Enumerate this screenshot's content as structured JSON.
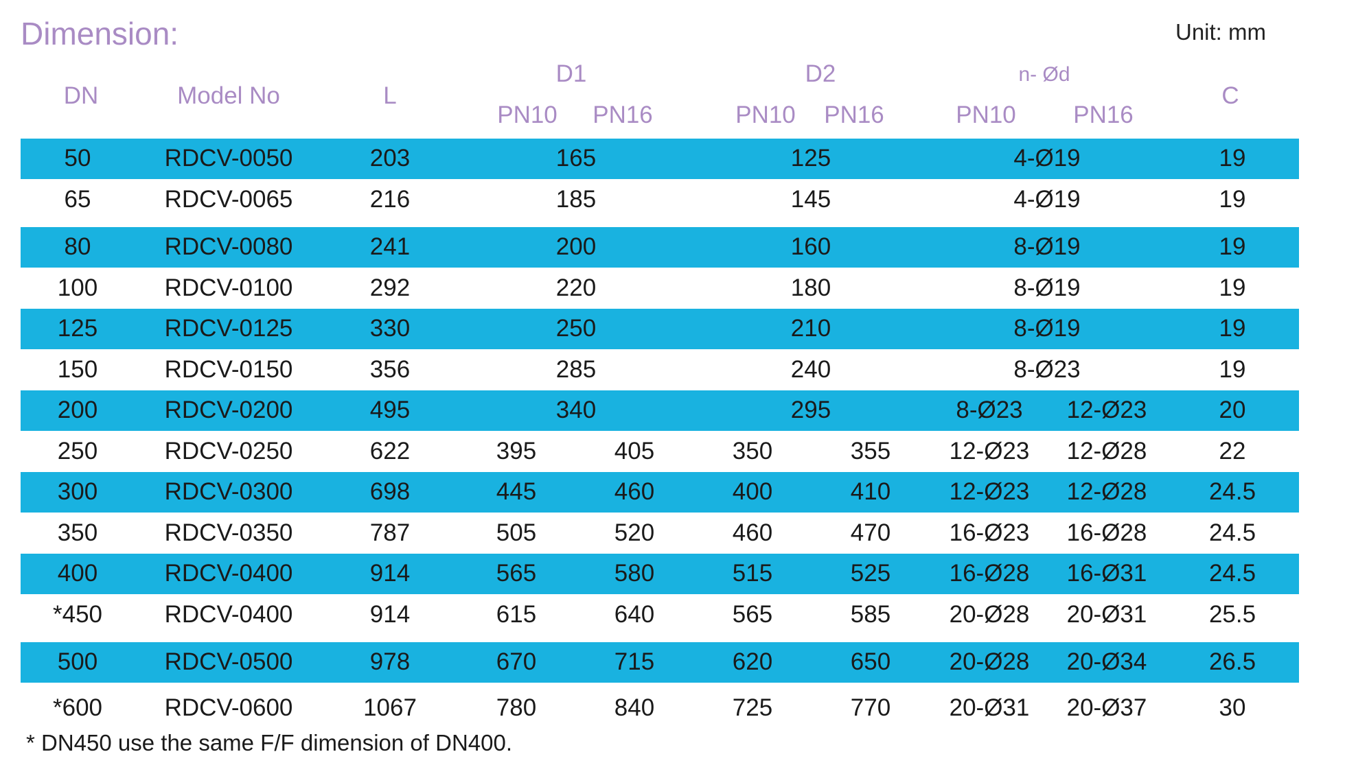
{
  "title": "Dimension:",
  "unit": "Unit: mm",
  "headers": {
    "dn": "DN",
    "model": "Model No",
    "l": "L",
    "d1": "D1",
    "d2": "D2",
    "nd": "n- Ød",
    "c": "C",
    "pn10": "PN10",
    "pn16": "PN16"
  },
  "rows": [
    {
      "dn": "50",
      "model": "RDCV-0050",
      "l": "203",
      "d1": "165",
      "d2": "125",
      "nd": "4-Ø19",
      "c": "19",
      "band": true
    },
    {
      "dn": "65",
      "model": "RDCV-0065",
      "l": "216",
      "d1": "185",
      "d2": "145",
      "nd": "4-Ø19",
      "c": "19",
      "band": false
    },
    {
      "dn": "80",
      "model": "RDCV-0080",
      "l": "241",
      "d1": "200",
      "d2": "160",
      "nd": "8-Ø19",
      "c": "19",
      "band": true
    },
    {
      "dn": "100",
      "model": "RDCV-0100",
      "l": "292",
      "d1": "220",
      "d2": "180",
      "nd": "8-Ø19",
      "c": "19",
      "band": false
    },
    {
      "dn": "125",
      "model": "RDCV-0125",
      "l": "330",
      "d1": "250",
      "d2": "210",
      "nd": "8-Ø19",
      "c": "19",
      "band": true
    },
    {
      "dn": "150",
      "model": "RDCV-0150",
      "l": "356",
      "d1": "285",
      "d2": "240",
      "nd": "8-Ø23",
      "c": "19",
      "band": false
    },
    {
      "dn": "200",
      "model": "RDCV-0200",
      "l": "495",
      "d1": "340",
      "d2": "295",
      "nd10": "8-Ø23",
      "nd16": "12-Ø23",
      "c": "20",
      "band": true
    },
    {
      "dn": "250",
      "model": "RDCV-0250",
      "l": "622",
      "d1_10": "395",
      "d1_16": "405",
      "d2_10": "350",
      "d2_16": "355",
      "nd10": "12-Ø23",
      "nd16": "12-Ø28",
      "c": "22",
      "band": false
    },
    {
      "dn": "300",
      "model": "RDCV-0300",
      "l": "698",
      "d1_10": "445",
      "d1_16": "460",
      "d2_10": "400",
      "d2_16": "410",
      "nd10": "12-Ø23",
      "nd16": "12-Ø28",
      "c": "24.5",
      "band": true
    },
    {
      "dn": "350",
      "model": "RDCV-0350",
      "l": "787",
      "d1_10": "505",
      "d1_16": "520",
      "d2_10": "460",
      "d2_16": "470",
      "nd10": "16-Ø23",
      "nd16": "16-Ø28",
      "c": "24.5",
      "band": false
    },
    {
      "dn": "400",
      "model": "RDCV-0400",
      "l": "914",
      "d1_10": "565",
      "d1_16": "580",
      "d2_10": "515",
      "d2_16": "525",
      "nd10": "16-Ø28",
      "nd16": "16-Ø31",
      "c": "24.5",
      "band": true
    },
    {
      "dn": "*450",
      "model": "RDCV-0400",
      "l": "914",
      "d1_10": "615",
      "d1_16": "640",
      "d2_10": "565",
      "d2_16": "585",
      "nd10": "20-Ø28",
      "nd16": "20-Ø31",
      "c": "25.5",
      "band": false
    },
    {
      "dn": "500",
      "model": "RDCV-0500",
      "l": "978",
      "d1_10": "670",
      "d1_16": "715",
      "d2_10": "620",
      "d2_16": "650",
      "nd10": "20-Ø28",
      "nd16": "20-Ø34",
      "c": "26.5",
      "band": true
    },
    {
      "dn": "*600",
      "model": "RDCV-0600",
      "l": "1067",
      "d1_10": "780",
      "d1_16": "840",
      "d2_10": "725",
      "d2_16": "770",
      "nd10": "20-Ø31",
      "nd16": "20-Ø37",
      "c": "30",
      "band": false
    }
  ],
  "footnote": "* DN450 use the same F/F dimension of DN400.",
  "colors": {
    "band": "#19b2e0",
    "header": "#a98bc4"
  }
}
